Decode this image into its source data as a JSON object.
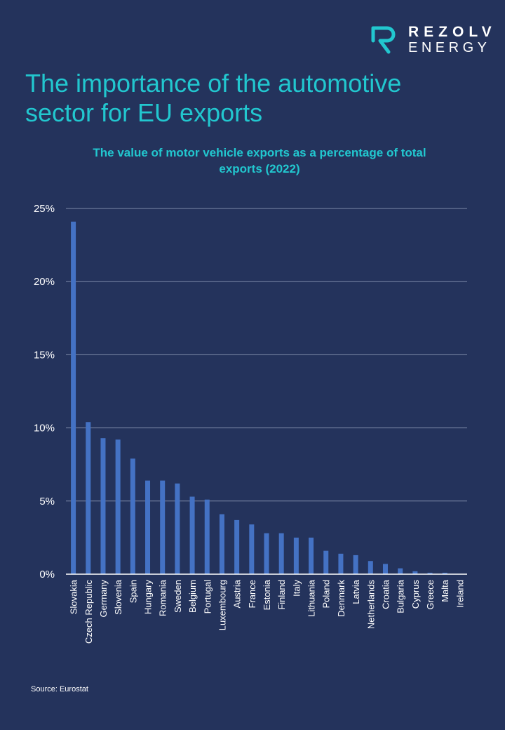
{
  "brand": {
    "name_line1": "REZOLV",
    "name_line2": "ENERGY",
    "logo_icon": "stylized-r-icon",
    "accent_color": "#22c7cf"
  },
  "header": {
    "title": "The importance of the automotive sector for EU exports",
    "subtitle": "The value of motor vehicle exports as a percentage of total exports (2022)"
  },
  "footer": {
    "source": "Source: Eurostat"
  },
  "chart_data": {
    "type": "bar",
    "title": "The value of motor vehicle exports as a percentage of total exports (2022)",
    "xlabel": "",
    "ylabel": "",
    "ylim": [
      0,
      25
    ],
    "yticks": [
      0,
      5,
      10,
      15,
      20,
      25
    ],
    "ytick_labels": [
      "0%",
      "5%",
      "10%",
      "15%",
      "20%",
      "25%"
    ],
    "grid": true,
    "legend": "none",
    "bar_color": "#4472c4",
    "categories": [
      "Slovakia",
      "Czech Republic",
      "Germany",
      "Slovenia",
      "Spain",
      "Hungary",
      "Romania",
      "Sweden",
      "Belgium",
      "Portugal",
      "Luxembourg",
      "Austria",
      "France",
      "Estonia",
      "Finland",
      "Italy",
      "Lithuania",
      "Poland",
      "Denmark",
      "Latvia",
      "Netherlands",
      "Croatia",
      "Bulgaria",
      "Cyprus",
      "Greece",
      "Malta",
      "Ireland"
    ],
    "values": [
      24.1,
      10.4,
      9.3,
      9.2,
      7.9,
      6.4,
      6.4,
      6.2,
      5.3,
      5.1,
      4.1,
      3.7,
      3.4,
      2.8,
      2.8,
      2.5,
      2.5,
      1.6,
      1.4,
      1.3,
      0.9,
      0.7,
      0.4,
      0.2,
      0.1,
      0.1,
      0.0
    ]
  }
}
